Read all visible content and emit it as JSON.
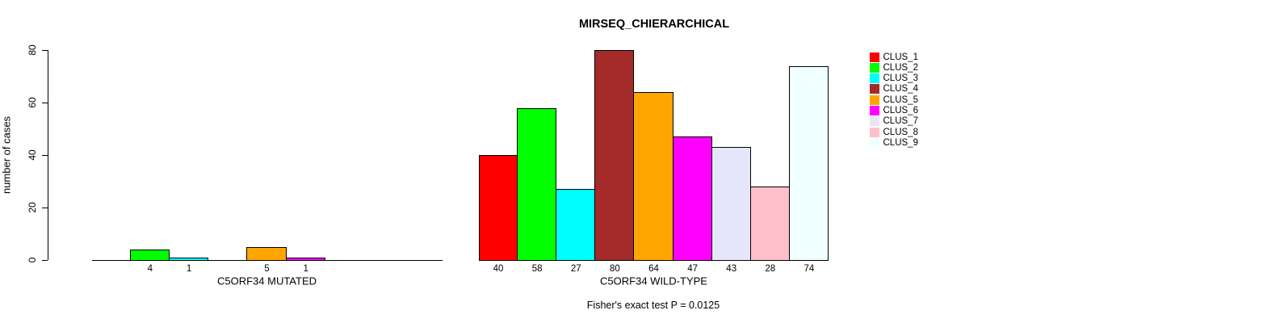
{
  "chart_data": {
    "type": "bar",
    "title": "MIRSEQ_CHIERARCHICAL",
    "ylabel": "number of cases",
    "ylim": [
      0,
      80
    ],
    "yticks": [
      0,
      20,
      40,
      60,
      80
    ],
    "grid": false,
    "categories": [
      "CLUS_1",
      "CLUS_2",
      "CLUS_3",
      "CLUS_4",
      "CLUS_5",
      "CLUS_6",
      "CLUS_7",
      "CLUS_8",
      "CLUS_9"
    ],
    "colors": [
      "#FF0000",
      "#00FF00",
      "#00FFFF",
      "#A52A2A",
      "#FFA500",
      "#FF00FF",
      "#E6E6FA",
      "#FFC0CB",
      "#F0FFFF"
    ],
    "groups": [
      {
        "label": "C5ORF34 MUTATED",
        "values": [
          0,
          4,
          1,
          0,
          5,
          1,
          0,
          0,
          0
        ]
      },
      {
        "label": "C5ORF34 WILD-TYPE",
        "values": [
          40,
          58,
          27,
          80,
          64,
          47,
          43,
          28,
          74
        ]
      }
    ],
    "legend": {
      "position": "right",
      "entries": [
        "CLUS_1",
        "CLUS_2",
        "CLUS_3",
        "CLUS_4",
        "CLUS_5",
        "CLUS_6",
        "CLUS_7",
        "CLUS_8",
        "CLUS_9"
      ]
    },
    "footnote": "Fisher's exact test P = 0.0125",
    "axis_color": "#000000",
    "background_color": "#FFFFFF"
  }
}
